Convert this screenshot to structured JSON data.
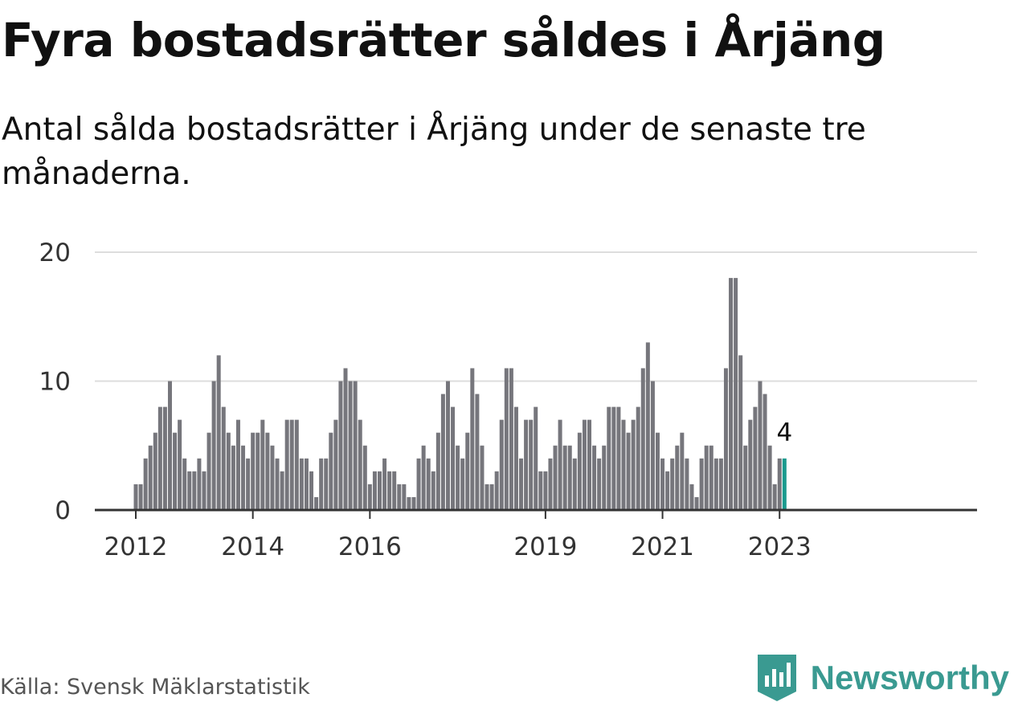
{
  "header": {
    "title": "Fyra bostadsrätter såldes i Årjäng",
    "subtitle": "Antal sålda bostadsrätter i Årjäng under de senaste tre månaderna."
  },
  "footer": {
    "source": "Källa: Svensk Mäklarstatistik",
    "brand": "Newsworthy",
    "brand_icon": "bar-chart-logo-icon"
  },
  "colors": {
    "bar": "#76767c",
    "highlight": "#1a9a8e",
    "grid": "#dddddd",
    "axis": "#333333",
    "brand": "#3a9a91"
  },
  "chart_data": {
    "type": "bar",
    "title": "",
    "xlabel": "",
    "ylabel": "",
    "ylim": [
      0,
      20
    ],
    "yticks": [
      "0",
      "10",
      "20"
    ],
    "xticks": [
      "2012",
      "2014",
      "2016",
      "2019",
      "2021",
      "2023"
    ],
    "grid": true,
    "highlight_label": "4",
    "categories": [
      "2012-01",
      "2012-02",
      "2012-03",
      "2012-04",
      "2012-05",
      "2012-06",
      "2012-07",
      "2012-08",
      "2012-09",
      "2012-10",
      "2012-11",
      "2012-12",
      "2013-01",
      "2013-02",
      "2013-03",
      "2013-04",
      "2013-05",
      "2013-06",
      "2013-07",
      "2013-08",
      "2013-09",
      "2013-10",
      "2013-11",
      "2013-12",
      "2014-01",
      "2014-02",
      "2014-03",
      "2014-04",
      "2014-05",
      "2014-06",
      "2014-07",
      "2014-08",
      "2014-09",
      "2014-10",
      "2014-11",
      "2014-12",
      "2015-01",
      "2015-02",
      "2015-03",
      "2015-04",
      "2015-05",
      "2015-06",
      "2015-07",
      "2015-08",
      "2015-09",
      "2015-10",
      "2015-11",
      "2015-12",
      "2016-01",
      "2016-02",
      "2016-03",
      "2016-04",
      "2016-05",
      "2016-06",
      "2016-07",
      "2016-08",
      "2016-09",
      "2016-10",
      "2016-11",
      "2016-12",
      "2017-01",
      "2017-02",
      "2017-03",
      "2017-04",
      "2017-05",
      "2017-06",
      "2017-07",
      "2017-08",
      "2017-09",
      "2017-10",
      "2017-11",
      "2017-12",
      "2018-01",
      "2018-02",
      "2018-03",
      "2018-04",
      "2018-05",
      "2018-06",
      "2018-07",
      "2018-08",
      "2018-09",
      "2018-10",
      "2018-11",
      "2018-12",
      "2019-01",
      "2019-02",
      "2019-03",
      "2019-04",
      "2019-05",
      "2019-06",
      "2019-07",
      "2019-08",
      "2019-09",
      "2019-10",
      "2019-11",
      "2019-12",
      "2020-01",
      "2020-02",
      "2020-03",
      "2020-04",
      "2020-05",
      "2020-06",
      "2020-07",
      "2020-08",
      "2020-09",
      "2020-10",
      "2020-11",
      "2020-12",
      "2021-01",
      "2021-02",
      "2021-03",
      "2021-04",
      "2021-05",
      "2021-06",
      "2021-07",
      "2021-08",
      "2021-09",
      "2021-10",
      "2021-11",
      "2021-12",
      "2022-01",
      "2022-02",
      "2022-03",
      "2022-04",
      "2022-05",
      "2022-06",
      "2022-07",
      "2022-08",
      "2022-09",
      "2022-10",
      "2022-11",
      "2022-12",
      "2023-01",
      "2023-02"
    ],
    "values": [
      2,
      2,
      4,
      5,
      6,
      8,
      8,
      10,
      6,
      7,
      4,
      3,
      3,
      4,
      3,
      6,
      10,
      12,
      8,
      6,
      5,
      7,
      5,
      4,
      6,
      6,
      7,
      6,
      5,
      4,
      3,
      7,
      7,
      7,
      4,
      4,
      3,
      1,
      4,
      4,
      6,
      7,
      10,
      11,
      10,
      10,
      7,
      5,
      2,
      3,
      3,
      4,
      3,
      3,
      2,
      2,
      1,
      1,
      4,
      5,
      4,
      3,
      6,
      9,
      10,
      8,
      5,
      4,
      6,
      11,
      9,
      5,
      2,
      2,
      3,
      7,
      11,
      11,
      8,
      4,
      7,
      7,
      8,
      3,
      3,
      4,
      5,
      7,
      5,
      5,
      4,
      6,
      7,
      7,
      5,
      4,
      5,
      8,
      8,
      8,
      7,
      6,
      7,
      8,
      11,
      13,
      10,
      6,
      4,
      3,
      4,
      5,
      6,
      4,
      2,
      1,
      4,
      5,
      5,
      4,
      4,
      11,
      18,
      18,
      12,
      5,
      7,
      8,
      10,
      9,
      5,
      2,
      4,
      4
    ]
  }
}
